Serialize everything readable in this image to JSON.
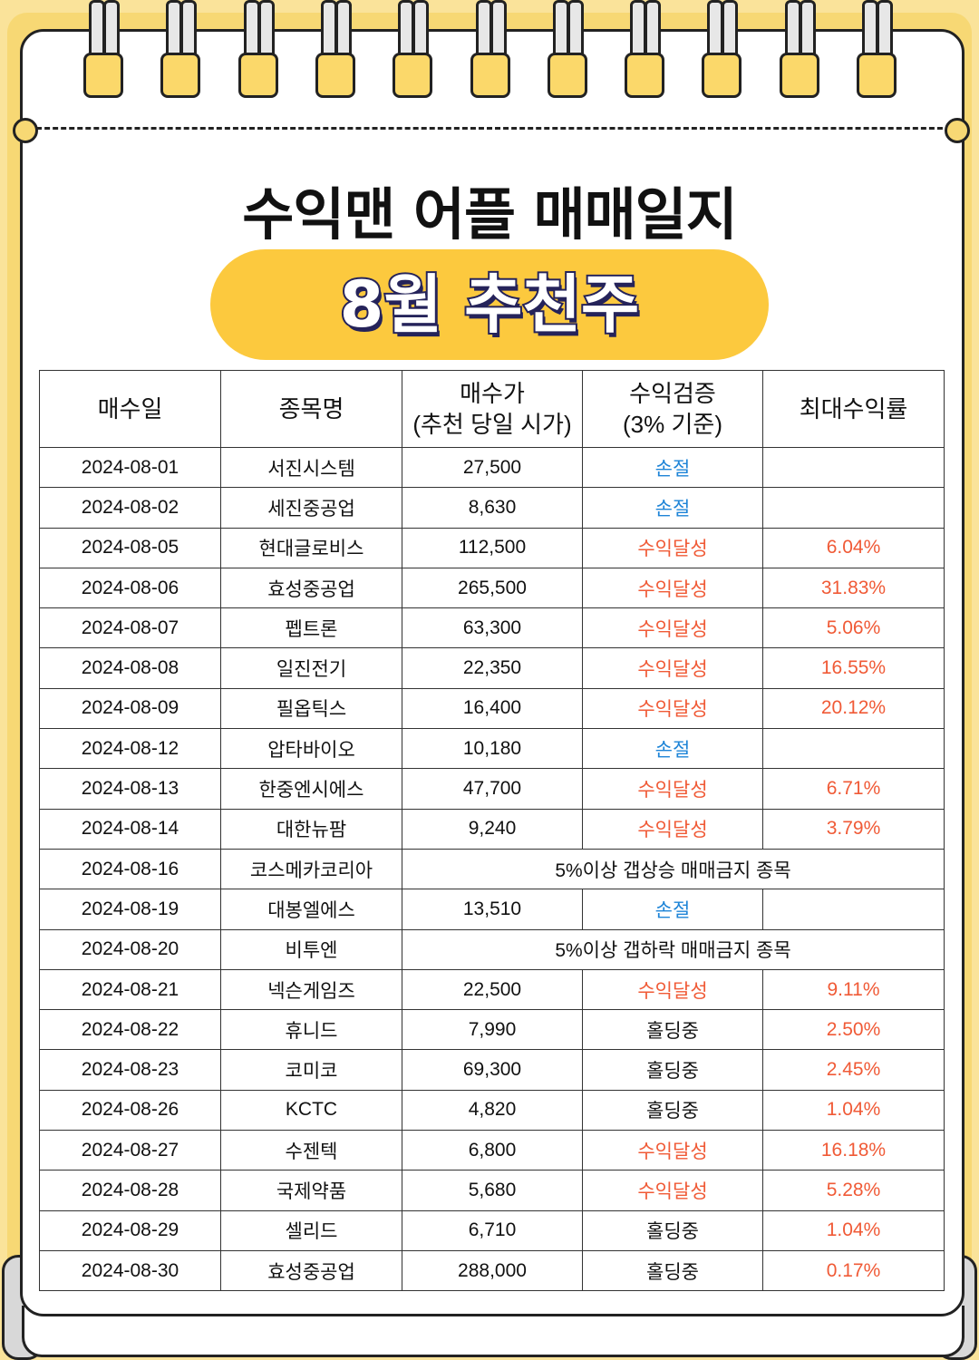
{
  "title": "수익맨 어플 매매일지",
  "subtitle": "8월 추천주",
  "table": {
    "headers": [
      "매수일",
      "종목명",
      "매수가\n(추천 당일 시가)",
      "수익검증\n(3% 기준)",
      "최대수익률"
    ],
    "rows": [
      {
        "date": "2024-08-01",
        "name": "서진시스템",
        "price": "27,500",
        "status": "손절",
        "tone": "loss",
        "max": ""
      },
      {
        "date": "2024-08-02",
        "name": "세진중공업",
        "price": "8,630",
        "status": "손절",
        "tone": "loss",
        "max": ""
      },
      {
        "date": "2024-08-05",
        "name": "현대글로비스",
        "price": "112,500",
        "status": "수익달성",
        "tone": "gain",
        "max": "6.04%"
      },
      {
        "date": "2024-08-06",
        "name": "효성중공업",
        "price": "265,500",
        "status": "수익달성",
        "tone": "gain",
        "max": "31.83%"
      },
      {
        "date": "2024-08-07",
        "name": "펩트론",
        "price": "63,300",
        "status": "수익달성",
        "tone": "gain",
        "max": "5.06%"
      },
      {
        "date": "2024-08-08",
        "name": "일진전기",
        "price": "22,350",
        "status": "수익달성",
        "tone": "gain",
        "max": "16.55%"
      },
      {
        "date": "2024-08-09",
        "name": "필옵틱스",
        "price": "16,400",
        "status": "수익달성",
        "tone": "gain",
        "max": "20.12%"
      },
      {
        "date": "2024-08-12",
        "name": "압타바이오",
        "price": "10,180",
        "status": "손절",
        "tone": "loss",
        "max": ""
      },
      {
        "date": "2024-08-13",
        "name": "한중엔시에스",
        "price": "47,700",
        "status": "수익달성",
        "tone": "gain",
        "max": "6.71%"
      },
      {
        "date": "2024-08-14",
        "name": "대한뉴팜",
        "price": "9,240",
        "status": "수익달성",
        "tone": "gain",
        "max": "3.79%"
      },
      {
        "date": "2024-08-16",
        "name": "코스메카코리아",
        "note": "5%이상 갭상승 매매금지 종목"
      },
      {
        "date": "2024-08-19",
        "name": "대봉엘에스",
        "price": "13,510",
        "status": "손절",
        "tone": "loss",
        "max": ""
      },
      {
        "date": "2024-08-20",
        "name": "비투엔",
        "note": "5%이상 갭하락 매매금지 종목"
      },
      {
        "date": "2024-08-21",
        "name": "넥슨게임즈",
        "price": "22,500",
        "status": "수익달성",
        "tone": "gain",
        "max": "9.11%"
      },
      {
        "date": "2024-08-22",
        "name": "휴니드",
        "price": "7,990",
        "status": "홀딩중",
        "tone": "hold",
        "max": "2.50%"
      },
      {
        "date": "2024-08-23",
        "name": "코미코",
        "price": "69,300",
        "status": "홀딩중",
        "tone": "hold",
        "max": "2.45%"
      },
      {
        "date": "2024-08-26",
        "name": "KCTC",
        "price": "4,820",
        "status": "홀딩중",
        "tone": "hold",
        "max": "1.04%"
      },
      {
        "date": "2024-08-27",
        "name": "수젠텍",
        "price": "6,800",
        "status": "수익달성",
        "tone": "gain",
        "max": "16.18%"
      },
      {
        "date": "2024-08-28",
        "name": "국제약품",
        "price": "5,680",
        "status": "수익달성",
        "tone": "gain",
        "max": "5.28%"
      },
      {
        "date": "2024-08-29",
        "name": "셀리드",
        "price": "6,710",
        "status": "홀딩중",
        "tone": "hold",
        "max": "1.04%"
      },
      {
        "date": "2024-08-30",
        "name": "효성중공업",
        "price": "288,000",
        "status": "홀딩중",
        "tone": "hold",
        "max": "0.17%"
      }
    ]
  },
  "colors": {
    "loss": "#1e84d7",
    "gain": "#f05a36",
    "hold": "#111111",
    "pill": "#fcc93e",
    "frame": "#fae39a"
  }
}
